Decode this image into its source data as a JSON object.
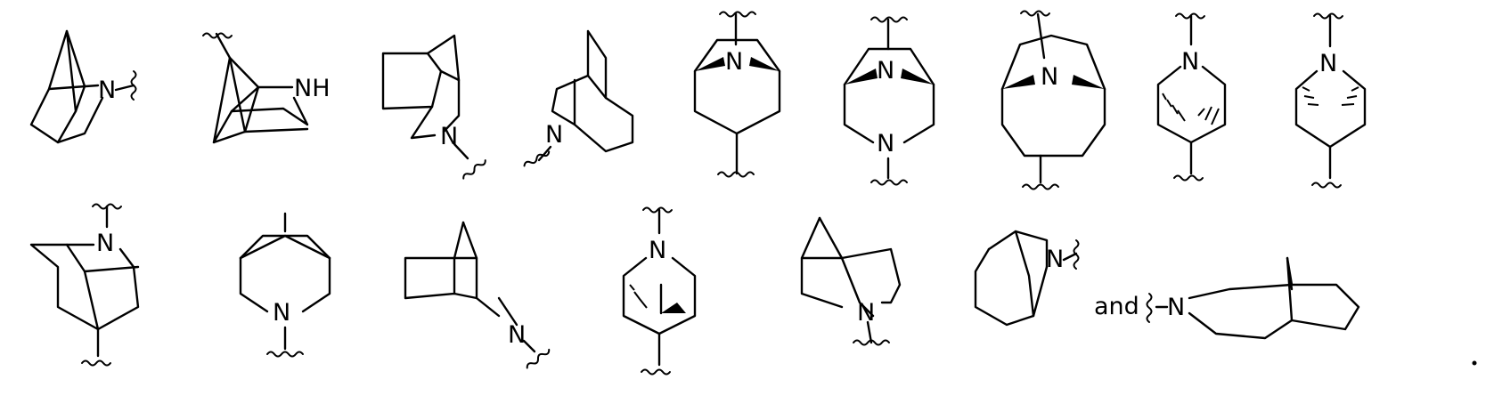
{
  "structures": [
    {
      "id": "s1",
      "atoms": [
        "N"
      ]
    },
    {
      "id": "s2",
      "atoms": [
        "NH"
      ]
    },
    {
      "id": "s3",
      "atoms": [
        "N"
      ]
    },
    {
      "id": "s4",
      "atoms": [
        "N"
      ]
    },
    {
      "id": "s5",
      "atoms": [
        "N"
      ]
    },
    {
      "id": "s6",
      "atoms": [
        "N",
        "N"
      ]
    },
    {
      "id": "s7",
      "atoms": [
        "N"
      ]
    },
    {
      "id": "s8",
      "atoms": [
        "N"
      ]
    },
    {
      "id": "s9",
      "atoms": [
        "N"
      ]
    },
    {
      "id": "s10",
      "atoms": [
        "N"
      ]
    },
    {
      "id": "s11",
      "atoms": [
        "N"
      ]
    },
    {
      "id": "s12",
      "atoms": [
        "N"
      ]
    },
    {
      "id": "s13",
      "atoms": [
        "N"
      ]
    },
    {
      "id": "s14",
      "atoms": [
        "N"
      ]
    },
    {
      "id": "s15",
      "atoms": [
        "N"
      ]
    },
    {
      "id": "s16",
      "atoms": [
        "N"
      ]
    }
  ],
  "conjunction": "and",
  "terminal_mark": "."
}
